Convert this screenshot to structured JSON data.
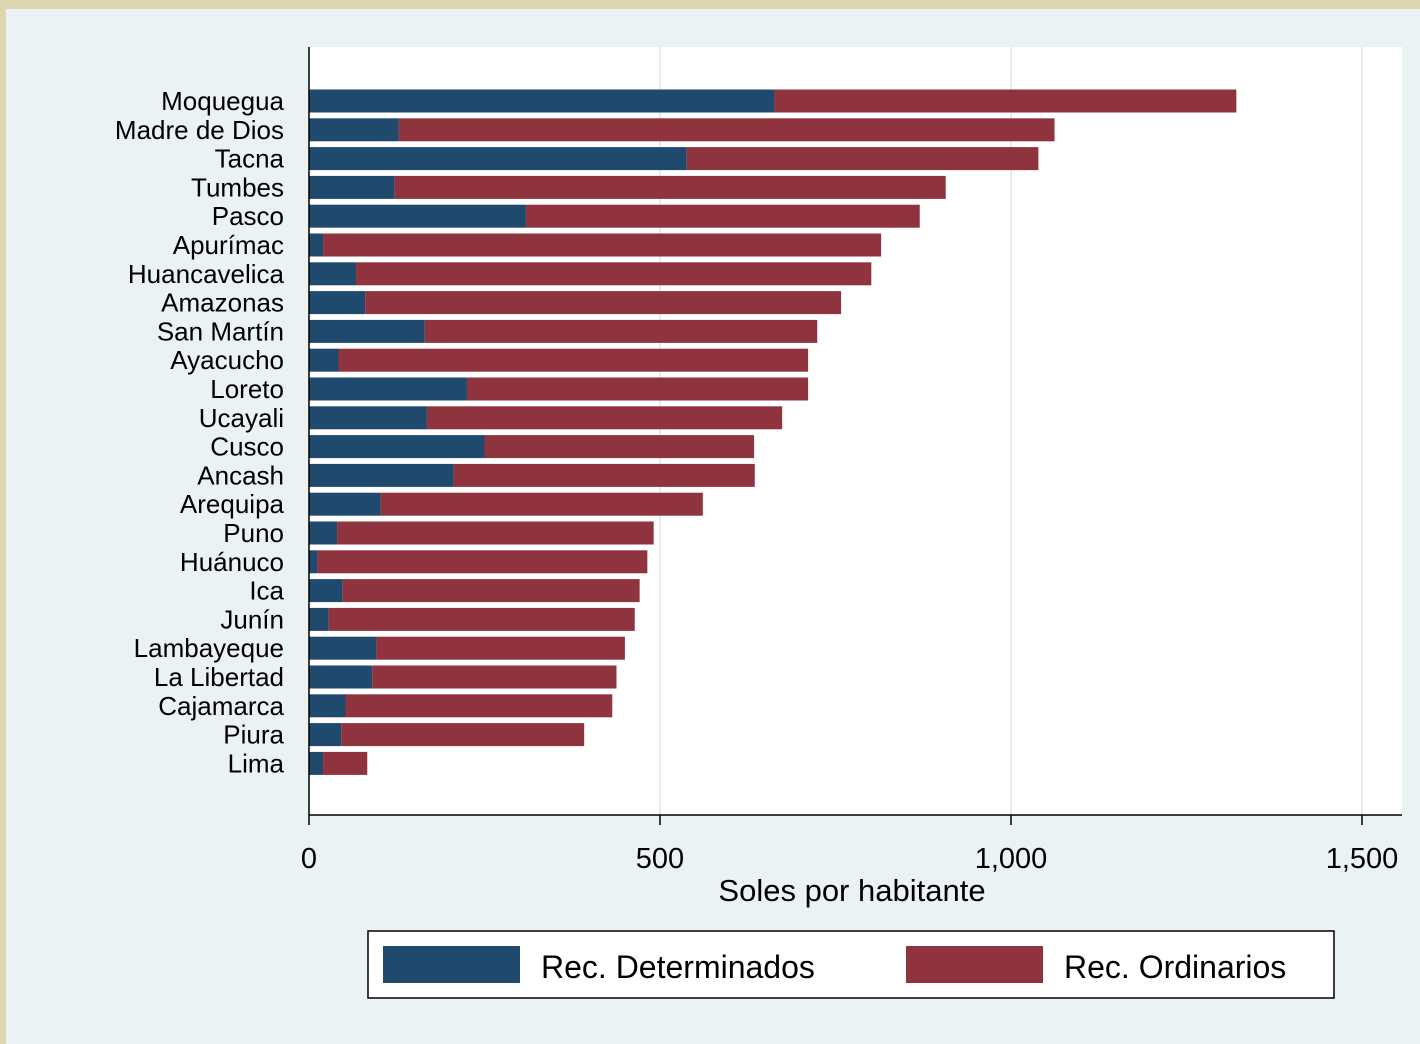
{
  "chart_data": {
    "type": "bar",
    "orientation": "horizontal",
    "stacked": true,
    "categories": [
      "Moquegua",
      "Madre de Dios",
      "Tacna",
      "Tumbes",
      "Pasco",
      "Apurímac",
      "Huancavelica",
      "Amazonas",
      "San Martín",
      "Ayacucho",
      "Loreto",
      "Ucayali",
      "Cusco",
      "Ancash",
      "Arequipa",
      "Puno",
      "Huánuco",
      "Ica",
      "Junín",
      "Lambayeque",
      "La Libertad",
      "Cajamarca",
      "Piura",
      "Lima"
    ],
    "series": [
      {
        "name": "Rec. Determinados",
        "color": "#1f4a6e",
        "values": [
          663,
          128,
          538,
          122,
          309,
          20,
          67,
          80,
          165,
          42,
          225,
          168,
          250,
          206,
          102,
          40,
          12,
          48,
          28,
          96,
          90,
          52,
          46,
          20
        ]
      },
      {
        "name": "Rec. Ordinarios",
        "color": "#8f333f",
        "values": [
          658,
          934,
          501,
          785,
          561,
          795,
          734,
          678,
          559,
          669,
          486,
          506,
          384,
          429,
          459,
          451,
          470,
          423,
          436,
          354,
          348,
          380,
          346,
          63
        ]
      }
    ],
    "xlabel": "Soles por habitante",
    "ylabel": "",
    "xlim": [
      0,
      1550
    ],
    "xticks": [
      0,
      500,
      1000,
      1500
    ],
    "xtick_labels": [
      "0",
      "500",
      "1,000",
      "1,500"
    ],
    "grid": true,
    "legend_position": "bottom"
  }
}
